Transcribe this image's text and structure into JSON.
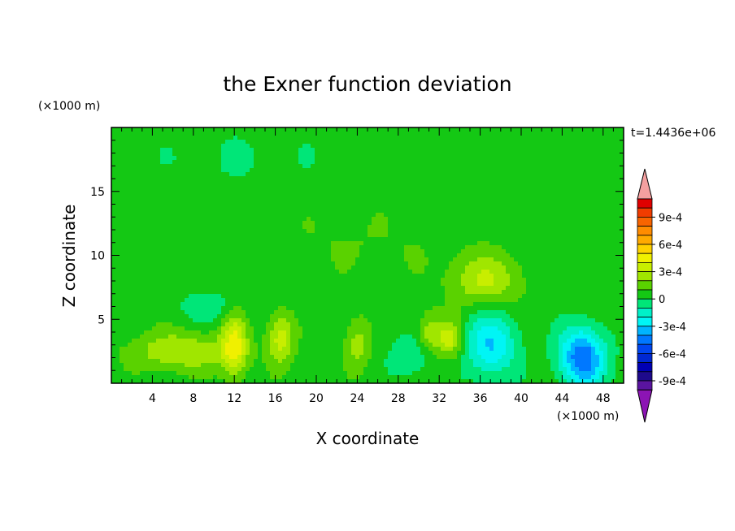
{
  "chart_data": {
    "type": "heatmap",
    "title": "the Exner function deviation",
    "xlabel": "X coordinate",
    "ylabel": "Z coordinate",
    "x_unit": "(×1000 m)",
    "y_unit": "(×1000 m)",
    "time_label": "t=1.4436e+06",
    "xlim": [
      0,
      50
    ],
    "ylim": [
      0,
      20
    ],
    "x_ticks": [
      4,
      8,
      12,
      16,
      20,
      24,
      28,
      32,
      36,
      40,
      44,
      48
    ],
    "y_ticks": [
      5,
      10,
      15
    ],
    "colorbar": {
      "tick_labels": [
        "9e-4",
        "6e-4",
        "3e-4",
        "0",
        "-3e-4",
        "-6e-4",
        "-9e-4"
      ],
      "tick_values": [
        0.0009,
        0.0006,
        0.0003,
        0,
        -0.0003,
        -0.0006,
        -0.0009
      ],
      "levels_from_top": [
        0.0011,
        0.001,
        0.0009,
        0.0008,
        0.0007,
        0.0006,
        0.0005,
        0.0004,
        0.0003,
        0.0002,
        0.0001,
        0,
        -0.0001,
        -0.0002,
        -0.0003,
        -0.0004,
        -0.0005,
        -0.0006,
        -0.0007,
        -0.0008,
        -0.0009,
        -0.001
      ],
      "colors_from_top": [
        "#f4a0a0",
        "#e00000",
        "#f03c00",
        "#f86400",
        "#ff8c00",
        "#ffaa00",
        "#ffd200",
        "#f0f000",
        "#c8ee00",
        "#a0e600",
        "#5ad200",
        "#14c814",
        "#00e678",
        "#00f0c8",
        "#00f5f5",
        "#00b4ff",
        "#0078ff",
        "#0046f0",
        "#0028d2",
        "#0000b4",
        "#1e0a8c",
        "#5a14a0",
        "#8c14b4"
      ]
    },
    "field": {
      "background": "0.5e-4",
      "features": [
        {
          "x": 12.5,
          "z": 17.5,
          "sx": 9,
          "sz": 2.5,
          "value": -5e-05
        },
        {
          "x": 24,
          "z": 11,
          "sx": 12,
          "sz": 2.5,
          "value": 5e-05
        },
        {
          "x": 7,
          "z": 2.5,
          "sx": 5,
          "sz": 1.5,
          "value": 0.00025
        },
        {
          "x": 12,
          "z": 3,
          "sx": 1.2,
          "sz": 2.5,
          "value": 0.00035
        },
        {
          "x": 16.5,
          "z": 3.5,
          "sx": 1.3,
          "sz": 2.0,
          "value": 0.0003
        },
        {
          "x": 24,
          "z": 3,
          "sx": 1.2,
          "sz": 2,
          "value": 0.0002
        },
        {
          "x": 31,
          "z": 4,
          "sx": 1.0,
          "sz": 1.5,
          "value": 0.0002
        },
        {
          "x": 36.5,
          "z": 8,
          "sx": 3.5,
          "sz": 2.0,
          "value": 0.00025
        },
        {
          "x": 33,
          "z": 3.5,
          "sx": 1.3,
          "sz": 1.5,
          "value": 0.0003
        },
        {
          "x": 37,
          "z": 3,
          "sx": 2.5,
          "sz": 2.5,
          "value": -0.00035
        },
        {
          "x": 46,
          "z": 2,
          "sx": 2.2,
          "sz": 2.3,
          "value": -0.00055
        },
        {
          "x": 29,
          "z": 2,
          "sx": 2,
          "sz": 1.5,
          "value": -0.00015
        },
        {
          "x": 9.5,
          "z": 6,
          "sx": 3,
          "sz": 1.2,
          "value": -0.00012
        }
      ]
    }
  }
}
